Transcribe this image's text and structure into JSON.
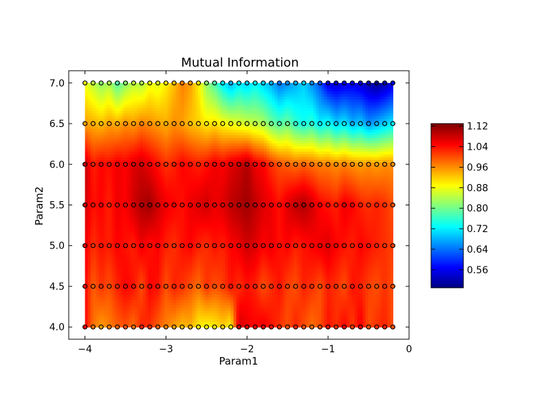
{
  "chart_data": {
    "type": "heatmap",
    "title": "Mutual Information",
    "xlabel": "Param1",
    "ylabel": "Param2",
    "xlim": [
      -4.2,
      0
    ],
    "ylim": [
      3.85,
      7.15
    ],
    "x_ticks": [
      -4,
      -3,
      -2,
      -1,
      0
    ],
    "x_tick_labels": [
      "−4",
      "−3",
      "−2",
      "−1",
      "0"
    ],
    "y_ticks": [
      4.0,
      4.5,
      5.0,
      5.5,
      6.0,
      6.5,
      7.0
    ],
    "y_tick_labels": [
      "4.0",
      "4.5",
      "5.0",
      "5.5",
      "6.0",
      "6.5",
      "7.0"
    ],
    "x": [
      -4.0,
      -3.9,
      -3.8,
      -3.7,
      -3.6,
      -3.5,
      -3.4,
      -3.3,
      -3.2,
      -3.1,
      -3.0,
      -2.9,
      -2.8,
      -2.7,
      -2.6,
      -2.5,
      -2.4,
      -2.3,
      -2.2,
      -2.1,
      -2.0,
      -1.9,
      -1.8,
      -1.7,
      -1.6,
      -1.5,
      -1.4,
      -1.3,
      -1.2,
      -1.1,
      -1.0,
      -0.9,
      -0.8,
      -0.7,
      -0.6,
      -0.5,
      -0.4,
      -0.3,
      -0.2
    ],
    "y": [
      4.0,
      4.5,
      5.0,
      5.5,
      6.0,
      6.5,
      7.0
    ],
    "z": [
      [
        1.05,
        0.98,
        0.95,
        0.97,
        0.99,
        1.0,
        0.98,
        1.03,
        1.02,
        0.99,
        0.97,
        0.95,
        0.93,
        0.94,
        0.9,
        0.89,
        0.9,
        0.92,
        0.89,
        1.08,
        1.06,
        1.05,
        1.06,
        1.04,
        1.02,
        1.0,
        1.03,
        1.0,
        0.98,
        1.0,
        1.04,
        1.02,
        1.05,
        1.01,
        1.06,
        1.0,
        1.02,
        1.03,
        1.0
      ],
      [
        1.05,
        0.99,
        1.02,
        1.0,
        1.03,
        1.05,
        1.04,
        1.0,
        1.05,
        1.04,
        1.0,
        1.03,
        1.02,
        1.0,
        0.98,
        1.02,
        1.0,
        1.01,
        1.04,
        1.02,
        1.04,
        1.03,
        1.0,
        1.02,
        1.04,
        1.01,
        1.0,
        1.03,
        1.02,
        1.0,
        1.03,
        1.02,
        1.0,
        1.04,
        1.03,
        1.01,
        1.0,
        1.02,
        1.0
      ],
      [
        1.06,
        1.02,
        1.04,
        1.03,
        1.05,
        1.04,
        1.03,
        1.06,
        1.04,
        1.05,
        1.03,
        1.02,
        1.04,
        1.05,
        1.03,
        1.02,
        1.04,
        1.03,
        1.05,
        1.06,
        1.08,
        1.07,
        1.05,
        1.06,
        1.04,
        1.05,
        1.03,
        1.04,
        1.05,
        1.06,
        1.07,
        1.05,
        1.04,
        1.03,
        1.05,
        1.04,
        1.03,
        1.02,
        1.01
      ],
      [
        1.08,
        1.04,
        1.05,
        1.03,
        1.06,
        1.05,
        1.08,
        1.1,
        1.11,
        1.08,
        1.06,
        1.05,
        1.04,
        1.06,
        1.07,
        1.08,
        1.06,
        1.07,
        1.09,
        1.1,
        1.11,
        1.09,
        1.07,
        1.06,
        1.04,
        1.07,
        1.09,
        1.1,
        1.08,
        1.05,
        1.04,
        1.03,
        1.06,
        1.05,
        1.03,
        1.02,
        1.03,
        1.02,
        1.0
      ],
      [
        1.09,
        1.03,
        1.05,
        1.04,
        1.06,
        1.05,
        1.07,
        1.08,
        1.06,
        1.04,
        1.02,
        1.03,
        1.05,
        1.04,
        1.03,
        1.04,
        1.06,
        1.05,
        1.07,
        1.08,
        1.1,
        1.06,
        1.05,
        1.02,
        1.0,
        0.99,
        0.98,
        0.99,
        0.98,
        0.97,
        0.97,
        0.96,
        0.97,
        0.96,
        0.95,
        0.96,
        0.95,
        0.96,
        0.96
      ],
      [
        0.95,
        0.94,
        0.93,
        0.95,
        0.94,
        0.96,
        0.95,
        0.97,
        0.96,
        0.95,
        0.94,
        0.96,
        0.95,
        0.93,
        0.92,
        0.9,
        0.91,
        0.89,
        0.88,
        0.87,
        0.86,
        0.85,
        0.84,
        0.8,
        0.78,
        0.8,
        0.76,
        0.74,
        0.76,
        0.72,
        0.74,
        0.7,
        0.72,
        0.68,
        0.7,
        0.66,
        0.68,
        0.7,
        0.72
      ],
      [
        0.88,
        0.85,
        0.82,
        0.84,
        0.78,
        0.82,
        0.85,
        0.84,
        0.88,
        0.87,
        0.9,
        0.93,
        0.97,
        0.95,
        0.9,
        0.82,
        0.78,
        0.72,
        0.68,
        0.72,
        0.7,
        0.73,
        0.7,
        0.68,
        0.64,
        0.66,
        0.68,
        0.7,
        0.66,
        0.62,
        0.55,
        0.54,
        0.55,
        0.56,
        0.54,
        0.52,
        0.5,
        0.52,
        0.55
      ]
    ],
    "colorbar": {
      "vmin": 0.49,
      "vmax": 1.13,
      "ticks": [
        0.56,
        0.64,
        0.72,
        0.8,
        0.88,
        0.96,
        1.04,
        1.12
      ],
      "tick_labels": [
        "0.56",
        "0.64",
        "0.72",
        "0.80",
        "0.88",
        "0.96",
        "1.04",
        "1.12"
      ],
      "colormap": "jet"
    },
    "grid": false,
    "markers": "open circles at each sample point, filled with local value color",
    "marker_edge_color": "#000000"
  }
}
